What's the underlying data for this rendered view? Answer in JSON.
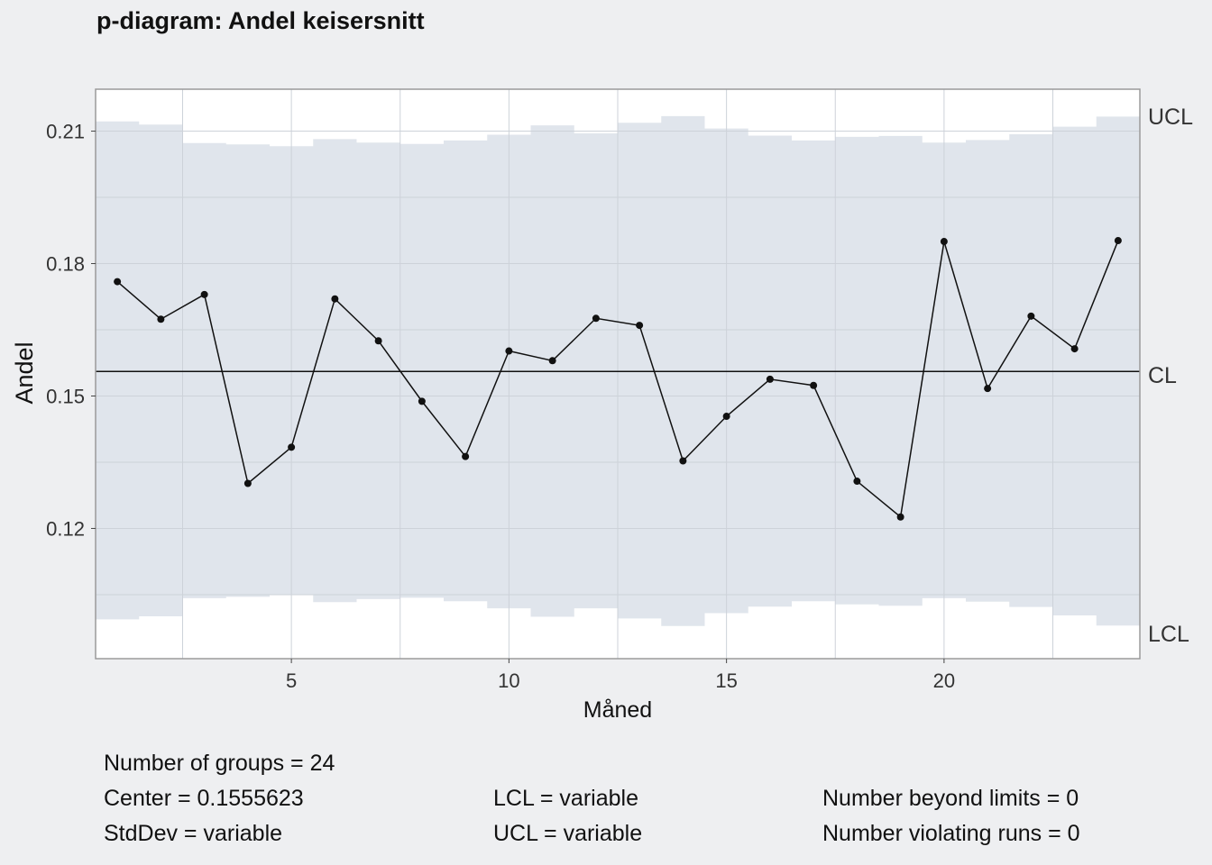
{
  "colors": {
    "background": "#eeeff1",
    "panel": "#ffffff",
    "limit_band": "#e0e5ec",
    "grid": "#cdd2d9",
    "line": "#111111",
    "axis_text": "#333333"
  },
  "chart_data": {
    "type": "line",
    "title": "p-diagram: Andel keisersnitt",
    "xlabel": "Måned",
    "ylabel": "Andel",
    "xlim": [
      0.5,
      24.5
    ],
    "ylim": [
      0.0905,
      0.2195
    ],
    "x_ticks": [
      5,
      10,
      15,
      20
    ],
    "y_ticks": [
      0.12,
      0.15,
      0.18,
      0.21
    ],
    "y_tick_labels": [
      "0.12",
      "0.15",
      "0.18",
      "0.21"
    ],
    "grid": true,
    "legend": "none",
    "center_line": 0.1555623,
    "line_labels": {
      "ucl": "UCL",
      "cl": "CL",
      "lcl": "LCL"
    },
    "x": [
      1,
      2,
      3,
      4,
      5,
      6,
      7,
      8,
      9,
      10,
      11,
      12,
      13,
      14,
      15,
      16,
      17,
      18,
      19,
      20,
      21,
      22,
      23,
      24
    ],
    "series": [
      {
        "values": [
          0.1759,
          0.1674,
          0.173,
          0.1302,
          0.1384,
          0.172,
          0.1625,
          0.1488,
          0.1363,
          0.1602,
          0.158,
          0.1676,
          0.166,
          0.1353,
          0.1454,
          0.1538,
          0.1524,
          0.1307,
          0.1226,
          0.185,
          0.1517,
          0.1681,
          0.1607,
          0.1852
        ]
      }
    ],
    "ucl": [
      0.2122,
      0.2115,
      0.2073,
      0.207,
      0.2066,
      0.2082,
      0.2074,
      0.2071,
      0.2079,
      0.2092,
      0.2113,
      0.2095,
      0.2119,
      0.2134,
      0.2106,
      0.209,
      0.2079,
      0.2087,
      0.2089,
      0.2074,
      0.208,
      0.2093,
      0.211,
      0.2133
    ],
    "lcl": [
      0.0994,
      0.1001,
      0.1042,
      0.1045,
      0.1049,
      0.1033,
      0.104,
      0.1043,
      0.1035,
      0.1019,
      0.1,
      0.1019,
      0.0996,
      0.0979,
      0.1008,
      0.1023,
      0.1035,
      0.1028,
      0.1025,
      0.1042,
      0.1034,
      0.1022,
      0.1003,
      0.098
    ]
  },
  "stats": {
    "groups": "Number of groups = 24",
    "center": "Center = 0.1555623",
    "stddev": "StdDev = variable",
    "lcl": "LCL = variable",
    "ucl": "UCL = variable",
    "beyond": "Number beyond limits = 0",
    "runs": "Number violating runs = 0"
  }
}
